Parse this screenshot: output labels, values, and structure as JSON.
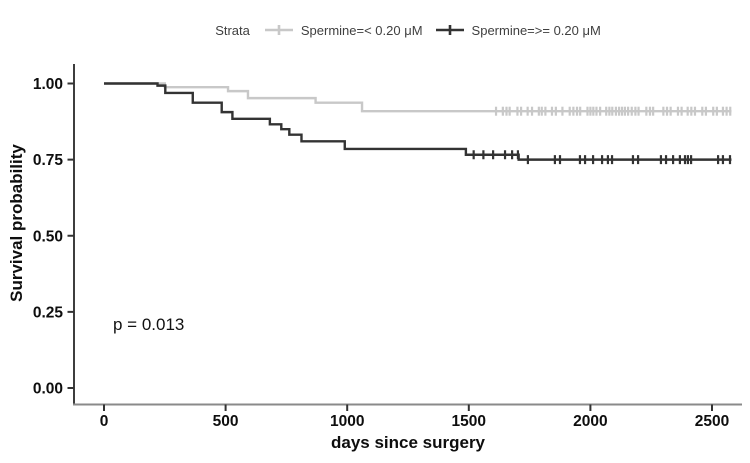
{
  "chart_data": {
    "type": "line",
    "subtype": "kaplan-meier-step",
    "title": "",
    "xlabel": "days since surgery",
    "ylabel": "Survival probability",
    "legend_title": "Strata",
    "legend_position": "top",
    "grid": false,
    "p_value_label": "p = 0.013",
    "xlim": [
      0,
      2620
    ],
    "ylim": [
      0.0,
      1.0
    ],
    "xticks": [
      0,
      500,
      1000,
      1500,
      2000,
      2500
    ],
    "ytick_labels": [
      "0.00",
      "0.25",
      "0.50",
      "0.75",
      "1.00"
    ],
    "ytick_values": [
      0.0,
      0.25,
      0.5,
      0.75,
      1.0
    ],
    "end_day": 2580,
    "series": [
      {
        "name": "Spermine=< 0.20 μM",
        "color": "#c8c8c8",
        "steps": [
          [
            0,
            1.0
          ],
          [
            250,
            0.988
          ],
          [
            510,
            0.975
          ],
          [
            592,
            0.952
          ],
          [
            870,
            0.937
          ],
          [
            1061,
            0.909
          ]
        ],
        "censor_days": [
          1612,
          1640,
          1655,
          1668,
          1700,
          1715,
          1742,
          1760,
          1788,
          1800,
          1815,
          1842,
          1858,
          1885,
          1915,
          1930,
          1945,
          1958,
          1988,
          2000,
          2012,
          2025,
          2040,
          2065,
          2078,
          2090,
          2105,
          2118,
          2130,
          2142,
          2155,
          2170,
          2185,
          2198,
          2230,
          2245,
          2258,
          2300,
          2315,
          2330,
          2360,
          2375,
          2400,
          2415,
          2430,
          2460,
          2475,
          2505,
          2520,
          2545,
          2560,
          2575
        ]
      },
      {
        "name": "Spermine=>= 0.20 μM",
        "color": "#333333",
        "steps": [
          [
            0,
            1.0
          ],
          [
            220,
            0.993
          ],
          [
            252,
            0.969
          ],
          [
            365,
            0.937
          ],
          [
            484,
            0.906
          ],
          [
            528,
            0.884
          ],
          [
            682,
            0.866
          ],
          [
            729,
            0.85
          ],
          [
            762,
            0.832
          ],
          [
            812,
            0.81
          ],
          [
            990,
            0.785
          ],
          [
            1488,
            0.766
          ],
          [
            1705,
            0.75
          ]
        ],
        "censor_days": [
          1520,
          1560,
          1600,
          1649,
          1678,
          1702,
          1743,
          1854,
          1875,
          1957,
          1978,
          2011,
          2048,
          2072,
          2089,
          2175,
          2196,
          2290,
          2311,
          2340,
          2368,
          2389,
          2401,
          2414,
          2525,
          2545,
          2574
        ]
      }
    ]
  },
  "colors": {
    "y_axis_line": "#3d3d3d",
    "x_axis_line": "#8a8a8a",
    "tick_mark": "#333333",
    "tick_text": "#0e0e0e",
    "legend_text": "#404040"
  }
}
